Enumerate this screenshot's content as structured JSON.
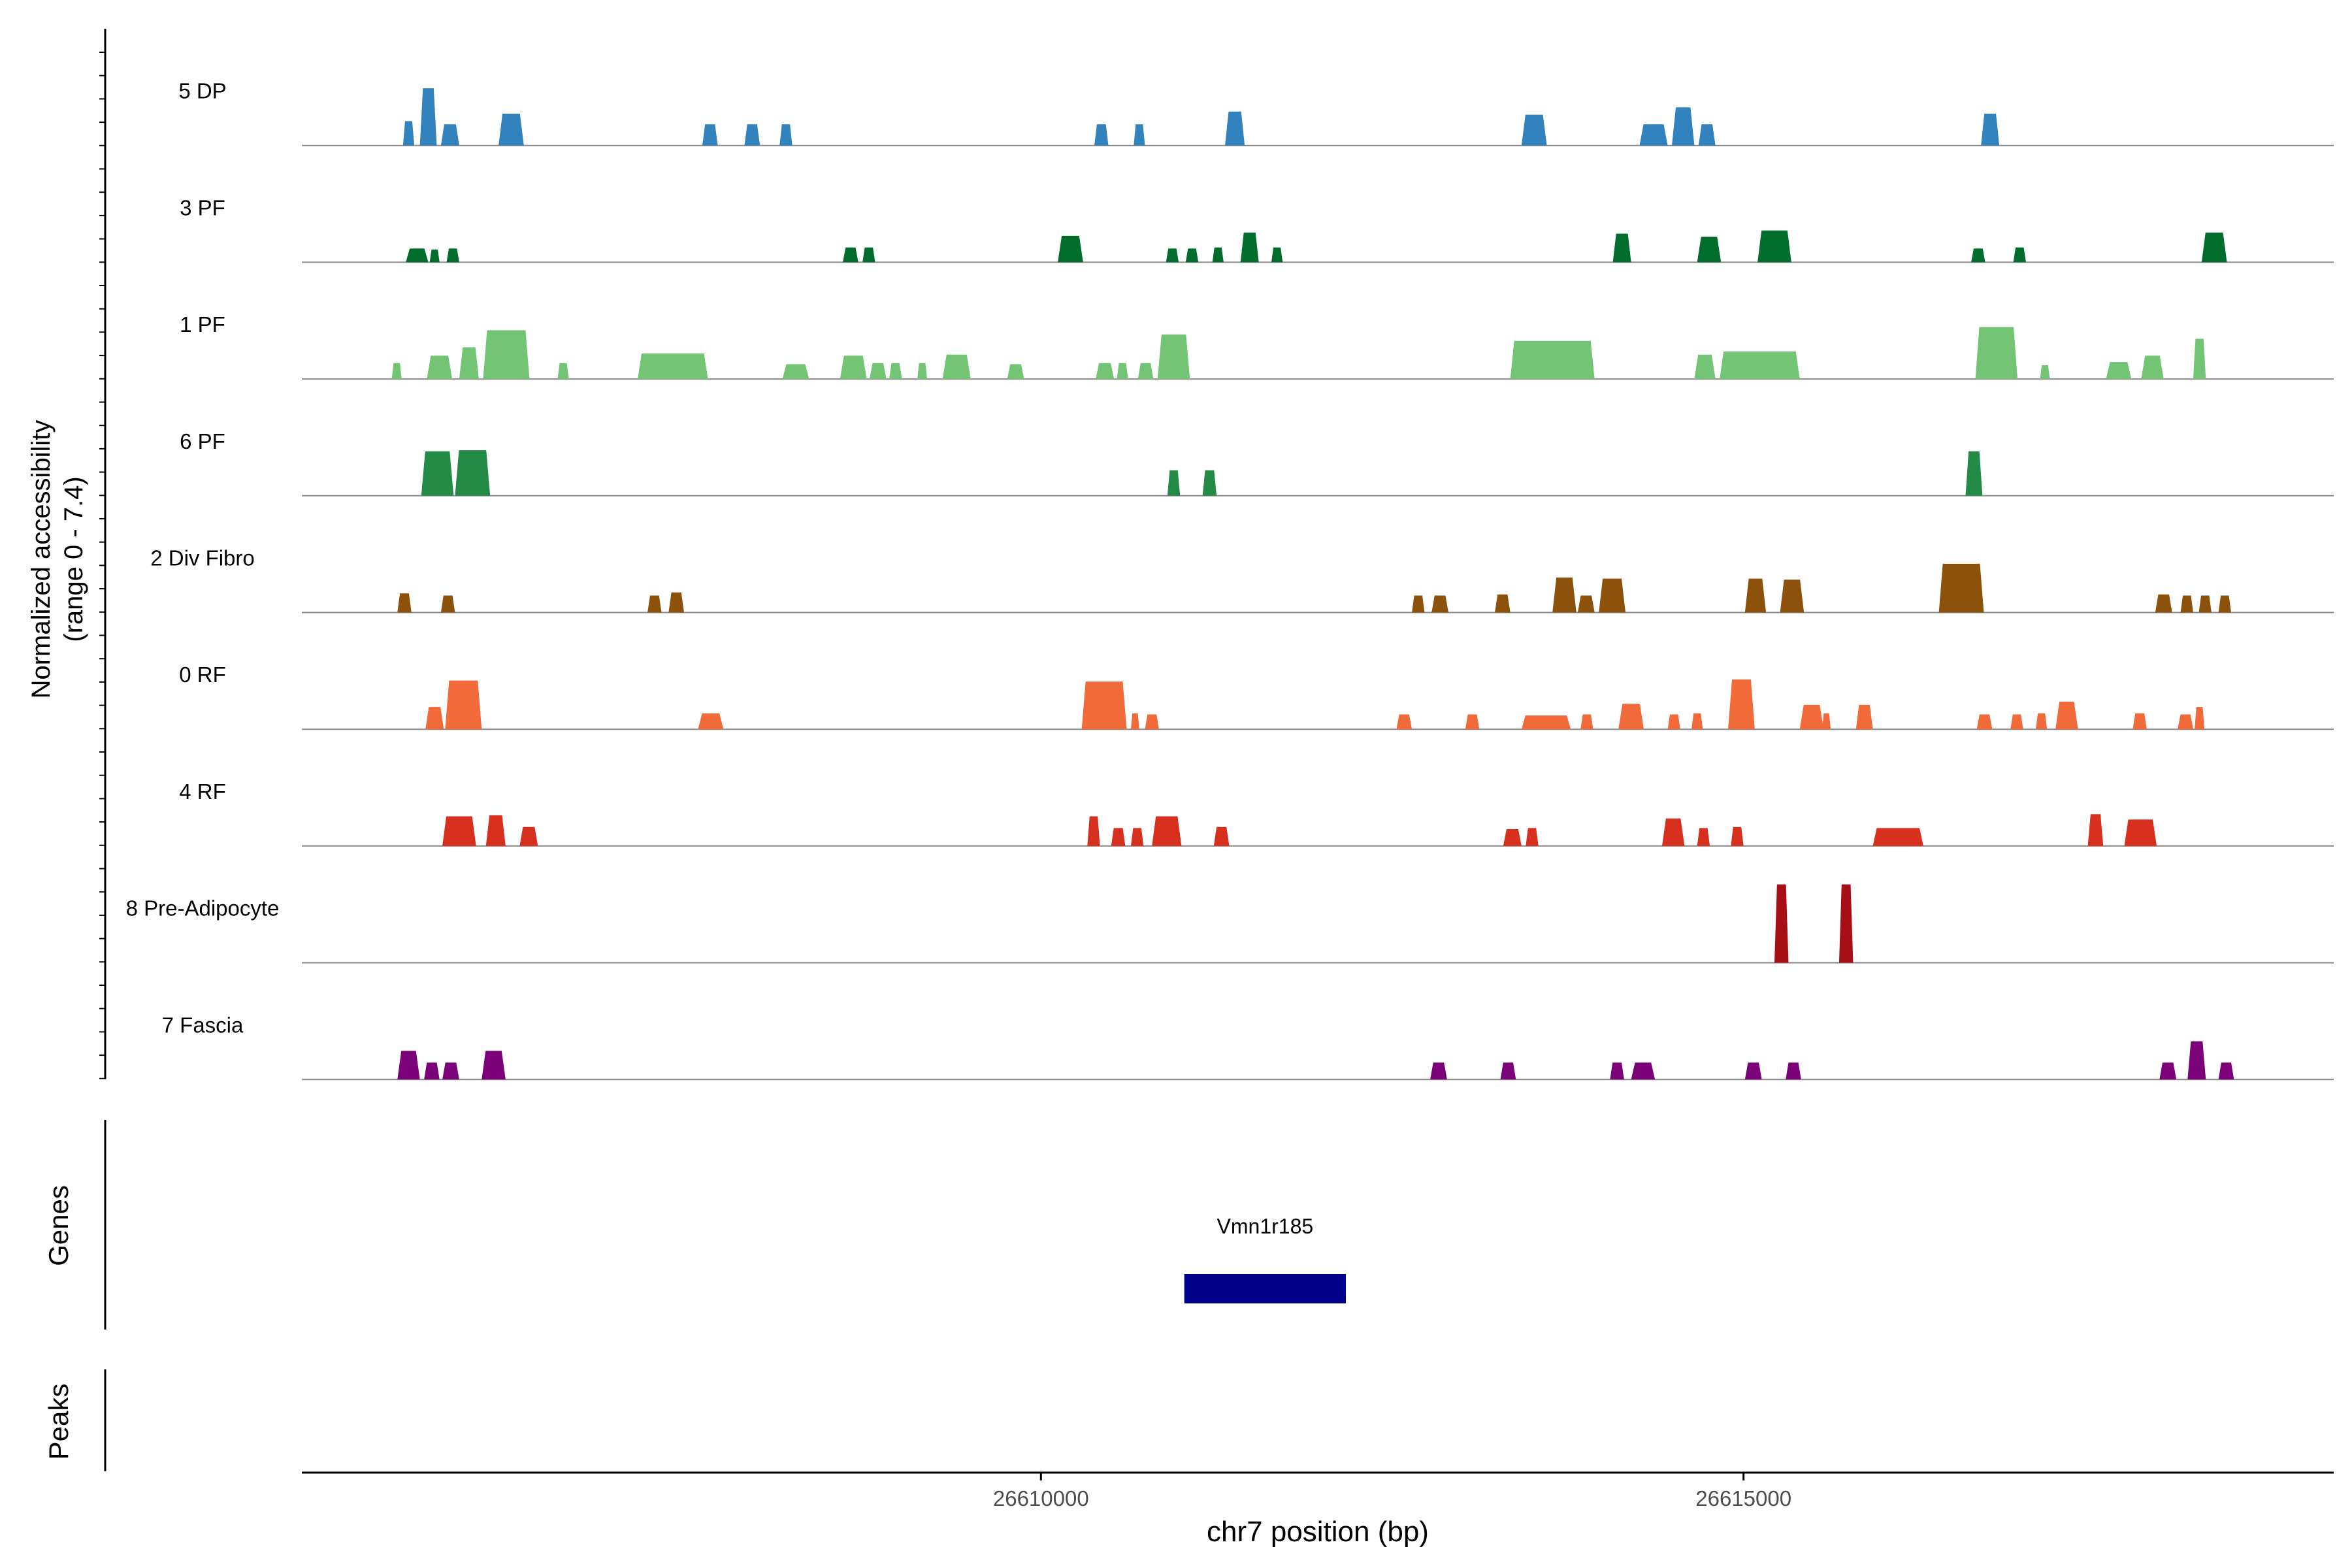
{
  "chart_data": {
    "type": "area",
    "title": "",
    "ylabel_line1": "Normalized accessibility",
    "ylabel_line2": "(range 0 - 7.4)",
    "y_range": [
      0,
      7.4
    ],
    "genes_label": "Genes",
    "peaks_label": "Peaks",
    "xlabel": "chr7 position (bp)",
    "x_range": [
      26604740,
      26619200
    ],
    "x_ticks": [
      26610000,
      26615000
    ],
    "x_tick_labels": [
      "26610000",
      "26615000"
    ],
    "gene": {
      "name": "Vmn1r185",
      "start": 26611020,
      "end": 26612170,
      "color": "#00008B"
    },
    "tracks": [
      {
        "name": "5 DP",
        "color": "#3182BD",
        "peaks": [
          [
            26605460,
            26605540,
            2.3
          ],
          [
            26605580,
            26605700,
            5.4
          ],
          [
            26605730,
            26605860,
            2.0
          ],
          [
            26606140,
            26606320,
            3.0
          ],
          [
            26607590,
            26607700,
            2.0
          ],
          [
            26607890,
            26608000,
            2.0
          ],
          [
            26608140,
            26608230,
            2.0
          ],
          [
            26610380,
            26610480,
            2.0
          ],
          [
            26610660,
            26610740,
            2.0
          ],
          [
            26611310,
            26611450,
            3.2
          ],
          [
            26613420,
            26613600,
            2.9
          ],
          [
            26614260,
            26614460,
            2.0
          ],
          [
            26614490,
            26614650,
            3.6
          ],
          [
            26614680,
            26614800,
            2.0
          ],
          [
            26616690,
            26616820,
            3.0
          ]
        ]
      },
      {
        "name": "3 PF",
        "color": "#006D2C",
        "peaks": [
          [
            26605480,
            26605640,
            1.3
          ],
          [
            26605650,
            26605720,
            1.2
          ],
          [
            26605770,
            26605860,
            1.3
          ],
          [
            26608590,
            26608700,
            1.4
          ],
          [
            26608730,
            26608820,
            1.4
          ],
          [
            26610120,
            26610300,
            2.5
          ],
          [
            26610890,
            26610980,
            1.3
          ],
          [
            26611030,
            26611120,
            1.3
          ],
          [
            26611220,
            26611300,
            1.4
          ],
          [
            26611420,
            26611550,
            2.8
          ],
          [
            26611640,
            26611720,
            1.4
          ],
          [
            26614070,
            26614200,
            2.7
          ],
          [
            26614670,
            26614840,
            2.4
          ],
          [
            26615100,
            26615340,
            3.0
          ],
          [
            26616620,
            26616720,
            1.3
          ],
          [
            26616920,
            26617010,
            1.4
          ],
          [
            26618260,
            26618440,
            2.8
          ]
        ]
      },
      {
        "name": "1 PF",
        "color": "#74C476",
        "peaks": [
          [
            26605380,
            26605450,
            1.5
          ],
          [
            26605630,
            26605810,
            2.2
          ],
          [
            26605860,
            26606000,
            3.0
          ],
          [
            26606030,
            26606360,
            4.6
          ],
          [
            26606560,
            26606640,
            1.5
          ],
          [
            26607130,
            26607630,
            2.4
          ],
          [
            26608160,
            26608350,
            1.4
          ],
          [
            26608570,
            26608760,
            2.2
          ],
          [
            26608780,
            26608900,
            1.5
          ],
          [
            26608920,
            26609010,
            1.5
          ],
          [
            26609120,
            26609190,
            1.5
          ],
          [
            26609300,
            26609500,
            2.3
          ],
          [
            26609760,
            26609880,
            1.4
          ],
          [
            26610390,
            26610520,
            1.5
          ],
          [
            26610540,
            26610620,
            1.5
          ],
          [
            26610690,
            26610800,
            1.5
          ],
          [
            26610830,
            26611060,
            4.2
          ],
          [
            26613340,
            26613940,
            3.6
          ],
          [
            26614650,
            26614800,
            2.3
          ],
          [
            26614830,
            26615400,
            2.6
          ],
          [
            26616650,
            26616950,
            4.9
          ],
          [
            26617110,
            26617180,
            1.3
          ],
          [
            26617580,
            26617760,
            1.6
          ],
          [
            26617830,
            26617990,
            2.2
          ],
          [
            26618200,
            26618290,
            3.8
          ]
        ]
      },
      {
        "name": "6 PF",
        "color": "#238B45",
        "peaks": [
          [
            26605590,
            26605820,
            4.2
          ],
          [
            26605830,
            26606080,
            4.3
          ],
          [
            26610900,
            26610990,
            2.4
          ],
          [
            26611150,
            26611250,
            2.4
          ],
          [
            26616580,
            26616700,
            4.2
          ]
        ]
      },
      {
        "name": "2 Div Fibro",
        "color": "#8C510A",
        "peaks": [
          [
            26605420,
            26605520,
            1.8
          ],
          [
            26605730,
            26605830,
            1.6
          ],
          [
            26607200,
            26607300,
            1.6
          ],
          [
            26607350,
            26607460,
            1.9
          ],
          [
            26612640,
            26612730,
            1.6
          ],
          [
            26612780,
            26612900,
            1.6
          ],
          [
            26613230,
            26613340,
            1.7
          ],
          [
            26613640,
            26613810,
            3.3
          ],
          [
            26613820,
            26613940,
            1.6
          ],
          [
            26613970,
            26614160,
            3.2
          ],
          [
            26615010,
            26615160,
            3.2
          ],
          [
            26615260,
            26615430,
            3.1
          ],
          [
            26616390,
            26616710,
            4.6
          ],
          [
            26617930,
            26618050,
            1.7
          ],
          [
            26618110,
            26618200,
            1.6
          ],
          [
            26618240,
            26618330,
            1.6
          ],
          [
            26618380,
            26618470,
            1.6
          ]
        ]
      },
      {
        "name": "0 RF",
        "color": "#F16A3A",
        "peaks": [
          [
            26605620,
            26605750,
            2.1
          ],
          [
            26605760,
            26606020,
            4.6
          ],
          [
            26607560,
            26607740,
            1.5
          ],
          [
            26610290,
            26610610,
            4.5
          ],
          [
            26610640,
            26610700,
            1.5
          ],
          [
            26610740,
            26610840,
            1.4
          ],
          [
            26612530,
            26612640,
            1.4
          ],
          [
            26613020,
            26613120,
            1.4
          ],
          [
            26613420,
            26613770,
            1.3
          ],
          [
            26613840,
            26613930,
            1.4
          ],
          [
            26614110,
            26614290,
            2.4
          ],
          [
            26614460,
            26614550,
            1.4
          ],
          [
            26614630,
            26614710,
            1.5
          ],
          [
            26614890,
            26615080,
            4.7
          ],
          [
            26615400,
            26615570,
            2.3
          ],
          [
            26615560,
            26615620,
            1.5
          ],
          [
            26615800,
            26615920,
            2.3
          ],
          [
            26616660,
            26616770,
            1.4
          ],
          [
            26616900,
            26616990,
            1.4
          ],
          [
            26617080,
            26617160,
            1.5
          ],
          [
            26617220,
            26617380,
            2.6
          ],
          [
            26617770,
            26617870,
            1.5
          ],
          [
            26618090,
            26618200,
            1.4
          ],
          [
            26618210,
            26618280,
            2.1
          ]
        ]
      },
      {
        "name": "4 RF",
        "color": "#D7301F",
        "peaks": [
          [
            26605740,
            26605980,
            2.8
          ],
          [
            26606050,
            26606190,
            2.9
          ],
          [
            26606290,
            26606420,
            1.8
          ],
          [
            26610330,
            26610420,
            2.8
          ],
          [
            26610500,
            26610600,
            1.7
          ],
          [
            26610640,
            26610730,
            1.7
          ],
          [
            26610790,
            26611000,
            2.8
          ],
          [
            26611230,
            26611340,
            1.8
          ],
          [
            26613290,
            26613420,
            1.6
          ],
          [
            26613450,
            26613540,
            1.7
          ],
          [
            26614420,
            26614580,
            2.6
          ],
          [
            26614670,
            26614760,
            1.7
          ],
          [
            26614910,
            26615000,
            1.8
          ],
          [
            26615920,
            26616280,
            1.7
          ],
          [
            26617450,
            26617560,
            3.0
          ],
          [
            26617710,
            26617940,
            2.5
          ]
        ]
      },
      {
        "name": "8 Pre-Adipocyte",
        "color": "#A50F15",
        "peaks": [
          [
            26615220,
            26615320,
            7.4
          ],
          [
            26615680,
            26615780,
            7.4
          ]
        ]
      },
      {
        "name": "7 Fascia",
        "color": "#7A0177",
        "peaks": [
          [
            26605420,
            26605580,
            2.7
          ],
          [
            26605610,
            26605720,
            1.6
          ],
          [
            26605740,
            26605860,
            1.6
          ],
          [
            26606020,
            26606190,
            2.7
          ],
          [
            26612770,
            26612890,
            1.6
          ],
          [
            26613270,
            26613380,
            1.6
          ],
          [
            26614050,
            26614150,
            1.6
          ],
          [
            26614200,
            26614370,
            1.6
          ],
          [
            26615010,
            26615130,
            1.6
          ],
          [
            26615300,
            26615410,
            1.6
          ],
          [
            26617960,
            26618080,
            1.6
          ],
          [
            26618160,
            26618290,
            3.6
          ],
          [
            26618380,
            26618490,
            1.6
          ]
        ]
      }
    ]
  }
}
